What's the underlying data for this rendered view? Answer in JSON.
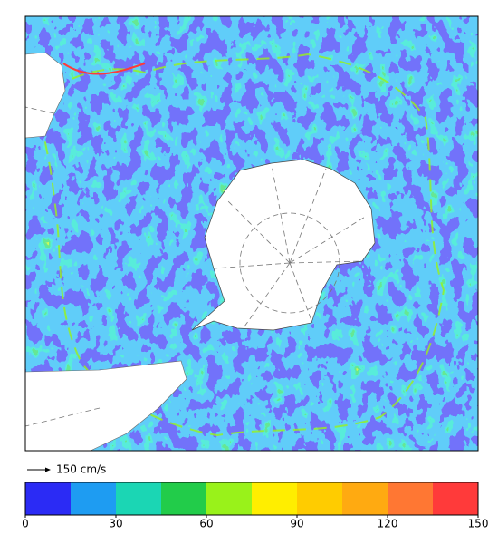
{
  "legend": {
    "reference_arrow": "150 cm/s",
    "colorbar": {
      "range": [
        0,
        150
      ],
      "ticks": [
        0,
        30,
        60,
        90,
        120,
        150
      ],
      "colors": [
        "#2b2bf5",
        "#1e9cf2",
        "#1bd6b4",
        "#22cc4a",
        "#99f21a",
        "#ffee00",
        "#ffcc00",
        "#ffaa11",
        "#ff7733",
        "#ff3a3a"
      ]
    }
  }
}
